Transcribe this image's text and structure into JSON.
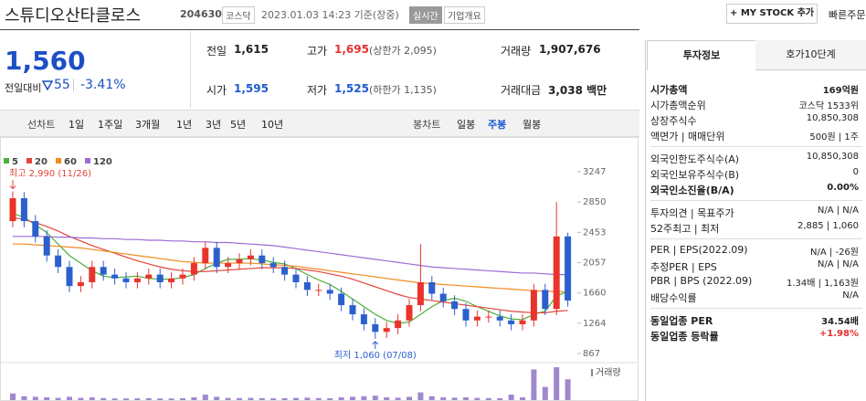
{
  "header": {
    "name": "스튜디오산타클로스",
    "code": "204630",
    "market": "코스닥",
    "time": "2023.01.03 14:23 기준(장중)",
    "realtime": "실시간",
    "overview": "기업개요",
    "mystock": "+ MY STOCK 추가",
    "quick": "빠른주문"
  },
  "quote": {
    "price": "1,560",
    "change_label": "전일대비",
    "change": "55",
    "rate": "-3.41%"
  },
  "table": [
    [
      {
        "label": "전일",
        "value": "1,615"
      },
      {
        "label": "고가",
        "value": "1,695",
        "note": "(상한가 2,095)"
      },
      {
        "label": "거래량",
        "value": "1,907,676"
      }
    ],
    [
      {
        "label": "시가",
        "value": "1,595"
      },
      {
        "label": "저가",
        "value": "1,525",
        "note": "(하한가 1,135)"
      },
      {
        "label": "거래대금",
        "value": "3,038 백만"
      }
    ]
  ],
  "tabs": {
    "line_label": "선차트",
    "line": [
      "1일",
      "1주일",
      "3개월",
      "1년",
      "3년",
      "5년",
      "10년"
    ],
    "candle_label": "봉차트",
    "candle": [
      "일봉",
      "주봉",
      "월봉"
    ]
  },
  "panel": {
    "tabs": [
      "투자정보",
      "호가10단계"
    ],
    "groups": [
      [
        {
          "label": "시가총액",
          "value": "169억원"
        },
        {
          "label": "시가총액순위",
          "value": "코스닥 1533위"
        },
        {
          "label": "상장주식수",
          "value": "10,850,308"
        },
        {
          "label": "액면가 | 매매단위",
          "value": "500원 | 1주"
        }
      ],
      [
        {
          "label": "외국인한도주식수(A)",
          "value": "10,850,308"
        },
        {
          "label": "외국인보유주식수(B)",
          "value": "0"
        },
        {
          "label": "외국인소진율(B/A)",
          "value": "0.00%"
        }
      ],
      [
        {
          "label": "투자의견 | 목표주가",
          "value": "N/A | N/A"
        },
        {
          "label": "52주최고 | 최저",
          "value": "2,885 | 1,060"
        }
      ],
      [
        {
          "label": "PER | EPS(2022.09)",
          "value": "N/A | -26원"
        },
        {
          "label": "추정PER | EPS",
          "value": "N/A | N/A"
        },
        {
          "label": "PBR | BPS (2022.09)",
          "value": "1.34배 | 1,163원"
        },
        {
          "label": "배당수익률",
          "value": "N/A"
        }
      ],
      [
        {
          "label": "동일업종 PER",
          "value": "34.54배"
        },
        {
          "label": "동일업종 등락률",
          "value": "+1.98%"
        }
      ]
    ]
  },
  "chart_data": {
    "type": "candlestick",
    "up_color": "#e8342c",
    "down_color": "#2c5fce",
    "ylim": [
      867,
      3247
    ],
    "yticks": [
      867,
      1264,
      1660,
      2057,
      2453,
      2850,
      3247
    ],
    "open": [
      2600,
      2900,
      2600,
      2400,
      2150,
      2000,
      1750,
      1800,
      2000,
      1900,
      1850,
      1800,
      1850,
      1900,
      1800,
      1850,
      1900,
      2050,
      2250,
      2000,
      2050,
      2100,
      2150,
      2050,
      2000,
      1900,
      1800,
      1700,
      1700,
      1650,
      1500,
      1380,
      1250,
      1150,
      1200,
      1300,
      1500,
      1800,
      1650,
      1550,
      1450,
      1300,
      1350,
      1350,
      1300,
      1250,
      1300,
      1700,
      1450,
      2400
    ],
    "high": [
      2990,
      2980,
      2680,
      2480,
      2230,
      2080,
      1880,
      2080,
      2080,
      1980,
      1930,
      1930,
      1980,
      1980,
      1930,
      1980,
      2130,
      2330,
      2330,
      2130,
      2180,
      2230,
      2230,
      2130,
      2080,
      1980,
      1880,
      1780,
      1780,
      1730,
      1580,
      1460,
      1330,
      1280,
      1380,
      1580,
      2300,
      1880,
      1730,
      1630,
      1530,
      1430,
      1430,
      1430,
      1380,
      1380,
      1780,
      1780,
      2850,
      2450
    ],
    "low": [
      2520,
      2520,
      2320,
      2070,
      1920,
      1670,
      1670,
      1720,
      1820,
      1770,
      1720,
      1720,
      1770,
      1720,
      1720,
      1770,
      1820,
      1970,
      1920,
      1920,
      1970,
      2020,
      1970,
      1920,
      1820,
      1720,
      1620,
      1620,
      1570,
      1420,
      1300,
      1170,
      1060,
      1070,
      1120,
      1220,
      1420,
      1570,
      1470,
      1370,
      1220,
      1220,
      1270,
      1220,
      1170,
      1170,
      1220,
      1370,
      1370,
      1480
    ],
    "close": [
      2900,
      2600,
      2400,
      2150,
      2000,
      1750,
      1800,
      2000,
      1900,
      1850,
      1800,
      1850,
      1900,
      1800,
      1850,
      1900,
      2050,
      2250,
      2000,
      2050,
      2100,
      2150,
      2050,
      2000,
      1900,
      1800,
      1700,
      1700,
      1650,
      1500,
      1380,
      1250,
      1150,
      1200,
      1300,
      1500,
      1800,
      1650,
      1550,
      1450,
      1300,
      1350,
      1350,
      1300,
      1250,
      1300,
      1700,
      1450,
      2400,
      1560
    ],
    "series": [
      {
        "name": "5",
        "color": "#4caf3c",
        "values": [
          2700,
          2650,
          2550,
          2450,
          2300,
          2150,
          2050,
          1950,
          1880,
          1860,
          1870,
          1880,
          1850,
          1840,
          1840,
          1860,
          1900,
          1980,
          2050,
          2100,
          2100,
          2110,
          2090,
          2060,
          2040,
          1980,
          1900,
          1830,
          1770,
          1680,
          1580,
          1480,
          1380,
          1300,
          1260,
          1280,
          1380,
          1480,
          1560,
          1590,
          1550,
          1480,
          1420,
          1360,
          1320,
          1310,
          1380,
          1420,
          1620,
          1680
        ]
      },
      {
        "name": "20",
        "color": "#e2453c",
        "values": [
          2650,
          2620,
          2580,
          2530,
          2470,
          2400,
          2340,
          2280,
          2230,
          2180,
          2130,
          2080,
          2040,
          2000,
          1970,
          1950,
          1940,
          1940,
          1950,
          1960,
          1970,
          1980,
          1990,
          1990,
          1990,
          1980,
          1960,
          1940,
          1910,
          1880,
          1840,
          1790,
          1740,
          1690,
          1640,
          1600,
          1580,
          1560,
          1540,
          1520,
          1500,
          1480,
          1460,
          1440,
          1420,
          1410,
          1400,
          1400,
          1420,
          1430
        ]
      },
      {
        "name": "60",
        "color": "#f08c1e",
        "values": [
          2300,
          2300,
          2290,
          2280,
          2270,
          2260,
          2250,
          2230,
          2210,
          2190,
          2170,
          2150,
          2130,
          2110,
          2090,
          2070,
          2060,
          2050,
          2050,
          2050,
          2050,
          2050,
          2040,
          2030,
          2020,
          2010,
          1990,
          1970,
          1950,
          1930,
          1910,
          1890,
          1870,
          1850,
          1830,
          1810,
          1790,
          1780,
          1770,
          1760,
          1750,
          1740,
          1730,
          1720,
          1710,
          1700,
          1690,
          1680,
          1680,
          1670
        ]
      },
      {
        "name": "120",
        "color": "#9d6bd6",
        "values": [
          2400,
          2400,
          2400,
          2400,
          2390,
          2390,
          2380,
          2380,
          2370,
          2370,
          2360,
          2360,
          2350,
          2350,
          2340,
          2340,
          2330,
          2330,
          2320,
          2320,
          2310,
          2300,
          2290,
          2280,
          2260,
          2240,
          2220,
          2200,
          2180,
          2160,
          2140,
          2120,
          2100,
          2080,
          2060,
          2040,
          2020,
          2000,
          1990,
          1980,
          1970,
          1960,
          1950,
          1940,
          1930,
          1920,
          1920,
          1910,
          1900,
          1900
        ]
      }
    ],
    "high_note": "최고 2,990 (11/26)",
    "low_note": "최저 1,060 (07/08)",
    "volume": {
      "label": "거래량",
      "color": "#a088cf",
      "values": [
        600,
        350,
        300,
        250,
        200,
        300,
        200,
        250,
        180,
        150,
        150,
        160,
        170,
        150,
        150,
        170,
        250,
        500,
        300,
        200,
        180,
        200,
        180,
        160,
        170,
        200,
        220,
        180,
        170,
        250,
        300,
        350,
        400,
        250,
        220,
        300,
        700,
        350,
        250,
        220,
        250,
        200,
        180,
        170,
        500,
        250,
        2800,
        1200,
        3000,
        1900
      ]
    }
  }
}
